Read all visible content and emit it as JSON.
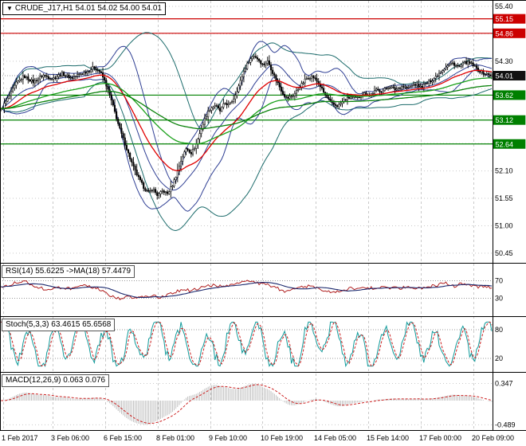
{
  "symbol_box": {
    "arrow": "▼",
    "label": "CRUDE_J17,H1",
    "quotes": "54.01 54.02 54.00 54.01"
  },
  "colors": {
    "grid": "#c9c9c9",
    "candle": "#000000",
    "bb_inner": "#2f3f94",
    "bb_outer": "#1b6b6b",
    "ma_red": "#e00000",
    "ma_green_fast": "#19a019",
    "ma_green_slow": "#0a820a",
    "resistance": "#cc0000",
    "support": "#008000",
    "current_badge": "#111111",
    "rsi_line": "#b02020",
    "rsi_ma": "#1c2a6e",
    "stoch_main": "#0f9a9a",
    "stoch_signal": "#cc2020",
    "macd_hist": "#b9b9b9",
    "macd_signal": "#cc2020"
  },
  "chart_data": {
    "type": "candlestick",
    "symbol": "CRUDE_J17",
    "timeframe": "H1",
    "last_quote": {
      "open": "54.01",
      "high": "54.02",
      "low": "54.00",
      "close": "54.01"
    },
    "x_axis": {
      "labels": [
        "1 Feb 2017",
        "3 Feb 06:00",
        "6 Feb 15:00",
        "8 Feb 01:00",
        "9 Feb 10:00",
        "10 Feb 19:00",
        "14 Feb 05:00",
        "15 Feb 14:00",
        "17 Feb 00:00",
        "20 Feb 09:00"
      ],
      "positions": [
        4,
        66,
        132,
        198,
        264,
        329,
        396,
        462,
        528,
        594
      ]
    },
    "main": {
      "grid_ticks": [
        55.4,
        54.85,
        54.3,
        53.75,
        53.2,
        52.65,
        52.1,
        51.55,
        51.0,
        50.45
      ],
      "tick_labels": [
        {
          "value": 55.4,
          "label": "55.40"
        },
        {
          "value": 54.3,
          "label": "54.30"
        },
        {
          "value": 52.1,
          "label": "52.10"
        },
        {
          "value": 51.55,
          "label": "51.55"
        },
        {
          "value": 51.0,
          "label": "51.00"
        },
        {
          "value": 50.45,
          "label": "50.45"
        }
      ],
      "resistance_levels": [
        {
          "value": 55.15,
          "label": "55.15"
        },
        {
          "value": 54.86,
          "label": "54.86"
        }
      ],
      "support_levels": [
        {
          "value": 53.62,
          "label": "53.62"
        },
        {
          "value": 53.12,
          "label": "53.12"
        },
        {
          "value": 52.64,
          "label": "52.64"
        }
      ],
      "current_price": {
        "value": 54.01,
        "label": "54.01"
      },
      "price_path": [
        [
          0,
          53.3
        ],
        [
          10,
          53.55
        ],
        [
          20,
          53.85
        ],
        [
          30,
          54.0
        ],
        [
          42,
          53.88
        ],
        [
          54,
          54.02
        ],
        [
          66,
          53.95
        ],
        [
          78,
          54.05
        ],
        [
          90,
          53.96
        ],
        [
          100,
          54.04
        ],
        [
          110,
          54.1
        ],
        [
          118,
          54.18
        ],
        [
          126,
          54.08
        ],
        [
          132,
          53.88
        ],
        [
          138,
          53.6
        ],
        [
          144,
          53.28
        ],
        [
          150,
          52.95
        ],
        [
          156,
          52.68
        ],
        [
          162,
          52.4
        ],
        [
          168,
          52.15
        ],
        [
          174,
          51.95
        ],
        [
          180,
          51.78
        ],
        [
          186,
          51.66
        ],
        [
          192,
          51.74
        ],
        [
          198,
          51.6
        ],
        [
          204,
          51.7
        ],
        [
          210,
          51.64
        ],
        [
          216,
          51.8
        ],
        [
          222,
          52.05
        ],
        [
          228,
          52.35
        ],
        [
          234,
          52.56
        ],
        [
          240,
          52.46
        ],
        [
          246,
          52.62
        ],
        [
          252,
          52.92
        ],
        [
          258,
          53.18
        ],
        [
          264,
          53.36
        ],
        [
          270,
          53.42
        ],
        [
          276,
          53.3
        ],
        [
          282,
          53.46
        ],
        [
          288,
          53.42
        ],
        [
          294,
          53.58
        ],
        [
          300,
          53.82
        ],
        [
          306,
          54.1
        ],
        [
          312,
          54.3
        ],
        [
          318,
          54.42
        ],
        [
          324,
          54.34
        ],
        [
          330,
          54.22
        ],
        [
          336,
          54.3
        ],
        [
          342,
          54.08
        ],
        [
          348,
          53.88
        ],
        [
          354,
          53.68
        ],
        [
          360,
          53.55
        ],
        [
          368,
          53.62
        ],
        [
          376,
          53.78
        ],
        [
          384,
          53.95
        ],
        [
          392,
          54.0
        ],
        [
          400,
          53.85
        ],
        [
          408,
          53.62
        ],
        [
          416,
          53.45
        ],
        [
          424,
          53.4
        ],
        [
          432,
          53.52
        ],
        [
          440,
          53.58
        ],
        [
          448,
          53.55
        ],
        [
          456,
          53.66
        ],
        [
          464,
          53.62
        ],
        [
          472,
          53.72
        ],
        [
          480,
          53.7
        ],
        [
          488,
          53.8
        ],
        [
          496,
          53.73
        ],
        [
          504,
          53.8
        ],
        [
          512,
          53.76
        ],
        [
          520,
          53.84
        ],
        [
          528,
          53.78
        ],
        [
          536,
          53.86
        ],
        [
          544,
          53.95
        ],
        [
          552,
          54.08
        ],
        [
          560,
          54.2
        ],
        [
          568,
          54.26
        ],
        [
          576,
          54.18
        ],
        [
          584,
          54.28
        ],
        [
          592,
          54.24
        ],
        [
          600,
          54.12
        ],
        [
          608,
          54.05
        ],
        [
          617,
          54.01
        ]
      ]
    },
    "rsi": {
      "label": "RSI(14) 55.6225  ->MA(18) 57.4479",
      "value": 55.6225,
      "ma_value": 57.4479,
      "levels": [
        {
          "value": 70,
          "label": "70"
        },
        {
          "value": 30,
          "label": "30"
        }
      ],
      "path": [
        [
          0,
          55
        ],
        [
          15,
          63
        ],
        [
          30,
          70
        ],
        [
          45,
          57
        ],
        [
          60,
          48
        ],
        [
          75,
          55
        ],
        [
          90,
          51
        ],
        [
          105,
          58
        ],
        [
          120,
          54
        ],
        [
          130,
          44
        ],
        [
          140,
          34
        ],
        [
          150,
          29
        ],
        [
          160,
          33
        ],
        [
          170,
          30
        ],
        [
          180,
          33
        ],
        [
          190,
          36
        ],
        [
          200,
          32
        ],
        [
          210,
          37
        ],
        [
          220,
          44
        ],
        [
          230,
          52
        ],
        [
          240,
          47
        ],
        [
          250,
          53
        ],
        [
          260,
          58
        ],
        [
          270,
          61
        ],
        [
          280,
          55
        ],
        [
          290,
          59
        ],
        [
          300,
          64
        ],
        [
          310,
          68
        ],
        [
          320,
          67
        ],
        [
          330,
          61
        ],
        [
          340,
          59
        ],
        [
          350,
          51
        ],
        [
          360,
          45
        ],
        [
          370,
          50
        ],
        [
          380,
          56
        ],
        [
          390,
          59
        ],
        [
          400,
          51
        ],
        [
          410,
          45
        ],
        [
          420,
          42
        ],
        [
          430,
          49
        ],
        [
          440,
          53
        ],
        [
          450,
          50
        ],
        [
          460,
          55
        ],
        [
          470,
          52
        ],
        [
          480,
          57
        ],
        [
          490,
          54
        ],
        [
          500,
          52
        ],
        [
          510,
          57
        ],
        [
          520,
          53
        ],
        [
          530,
          52
        ],
        [
          540,
          57
        ],
        [
          550,
          61
        ],
        [
          560,
          65
        ],
        [
          570,
          58
        ],
        [
          580,
          63
        ],
        [
          590,
          57
        ],
        [
          600,
          56
        ],
        [
          617,
          56
        ]
      ]
    },
    "stoch": {
      "label": "Stoch(5,3,3) 63.4615 65.6568",
      "value": 63.4615,
      "signal_value": 65.6568,
      "levels": [
        {
          "value": 80,
          "label": "80"
        },
        {
          "value": 20,
          "label": "20"
        }
      ],
      "generator": {
        "a1": 36,
        "f1": 0.42,
        "ph1": 0.9,
        "a2": 17,
        "f2": 0.13,
        "ph2": 2.0,
        "noise": 24
      }
    },
    "macd": {
      "label": "MACD(12,26,9) 0.063 0.076",
      "value": 0.063,
      "signal_value": 0.076,
      "axis_ticks": [
        {
          "value": 0.347,
          "label": "0.347"
        },
        {
          "value": -0.489,
          "label": "-0.489"
        }
      ],
      "fast": 12,
      "slow": 26,
      "signal_period": 9
    }
  }
}
